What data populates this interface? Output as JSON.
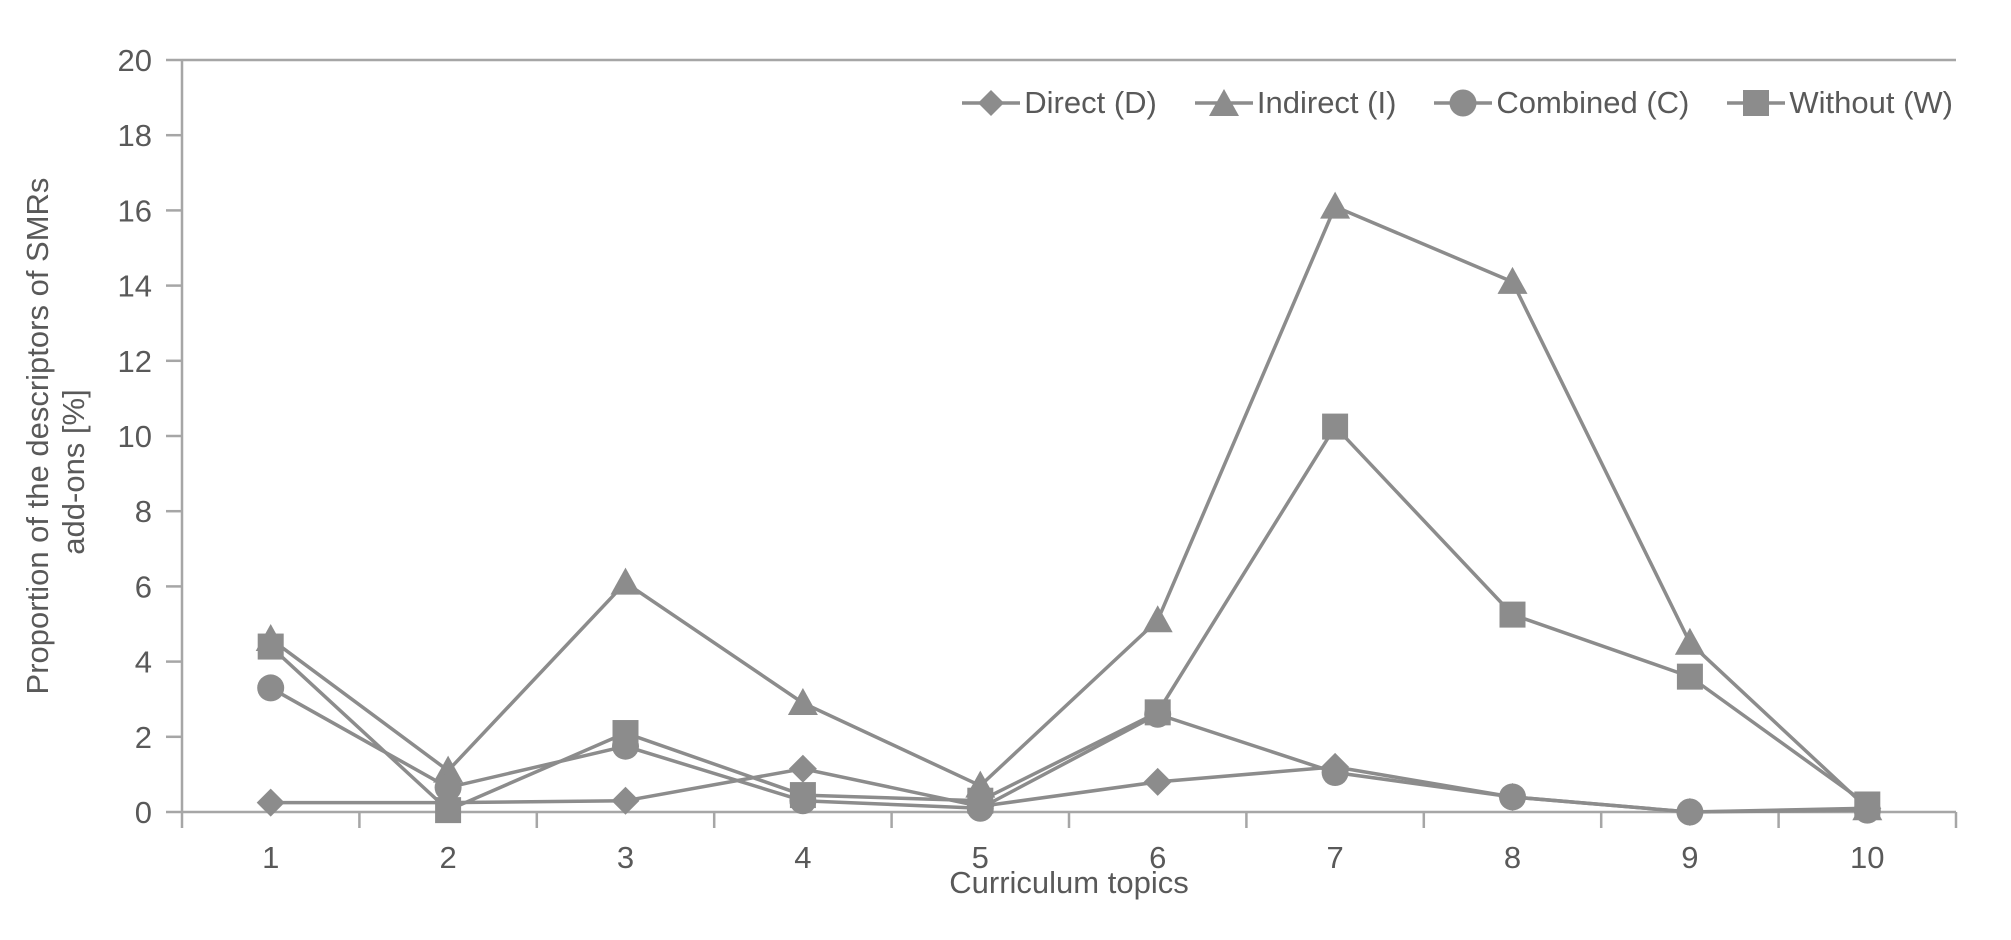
{
  "chart_data": {
    "type": "line",
    "title": "",
    "xlabel": "Curriculum topics",
    "ylabel": "Proportion of the descriptors of SMRs add-ons [%]",
    "ylabel_lines": [
      "Proportion of the descriptors of SMRs",
      "add-ons [%]"
    ],
    "x": [
      1,
      2,
      3,
      4,
      5,
      6,
      7,
      8,
      9,
      10
    ],
    "xticks": [
      "1",
      "2",
      "3",
      "4",
      "5",
      "6",
      "7",
      "8",
      "9",
      "10"
    ],
    "yticks": [
      0,
      2,
      4,
      6,
      8,
      10,
      12,
      14,
      16,
      18,
      20
    ],
    "ylim": [
      0,
      20
    ],
    "grid": false,
    "legend_position": "top-right",
    "series": [
      {
        "name": "Direct (D)",
        "marker": "diamond",
        "values": [
          0.25,
          0.25,
          0.3,
          1.15,
          0.15,
          0.8,
          1.2,
          0.4,
          0.0,
          0.1
        ]
      },
      {
        "name": "Indirect (I)",
        "marker": "triangle",
        "values": [
          4.6,
          1.1,
          6.1,
          2.9,
          0.7,
          5.1,
          16.1,
          14.1,
          4.5,
          0.1
        ]
      },
      {
        "name": "Combined (C)",
        "marker": "circle",
        "values": [
          3.3,
          0.65,
          1.75,
          0.3,
          0.1,
          2.6,
          1.05,
          0.4,
          0.0,
          0.05
        ]
      },
      {
        "name": "Without (W)",
        "marker": "square",
        "values": [
          4.4,
          0.05,
          2.1,
          0.45,
          0.3,
          2.65,
          10.25,
          5.25,
          3.6,
          0.2
        ]
      }
    ],
    "colors": {
      "series": "#8c8c8c",
      "axis_line": "#a6a6a6",
      "tick_text": "#595959"
    }
  }
}
